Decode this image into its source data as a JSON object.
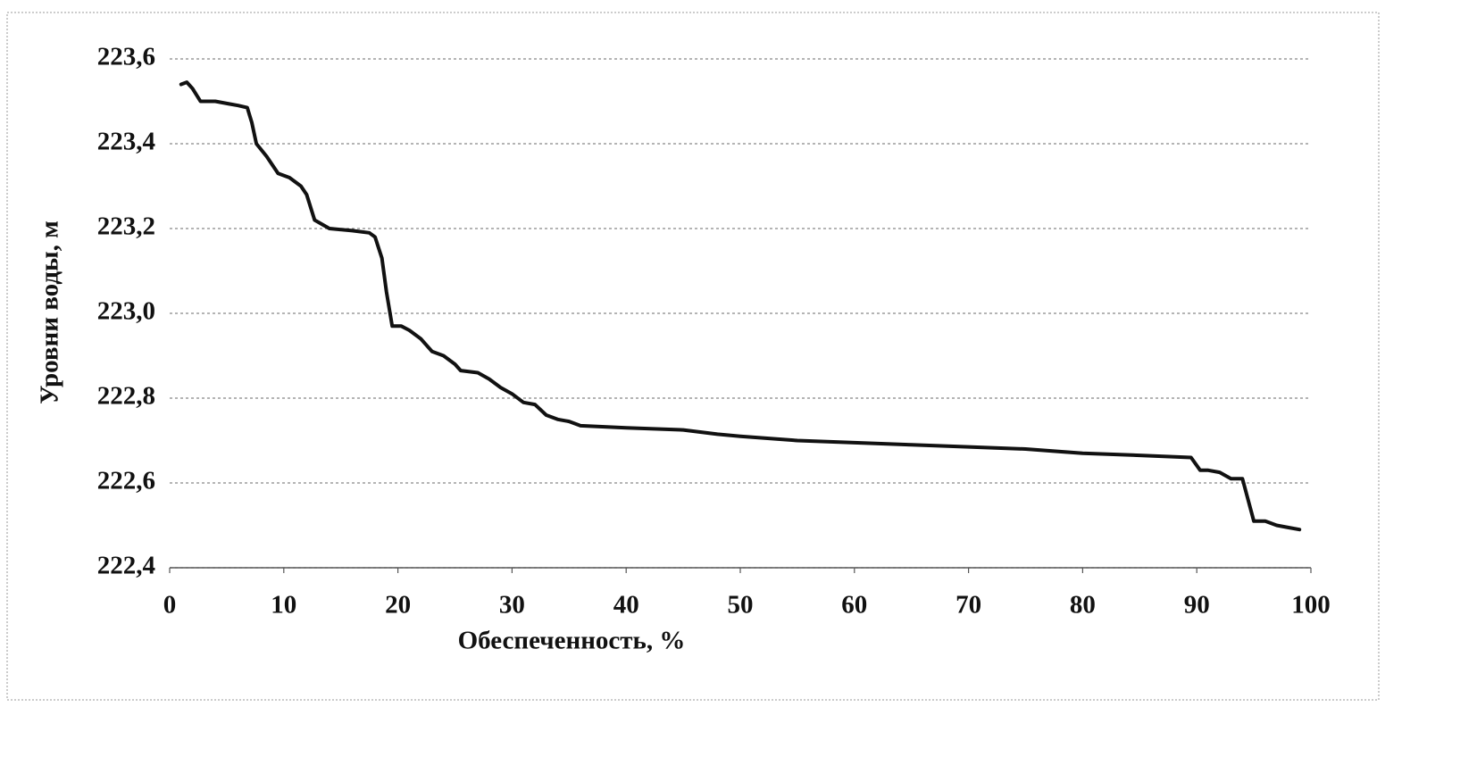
{
  "chart_data": {
    "type": "line",
    "x_label": "Обеспеченность, %",
    "y_label": "Уровни воды, м",
    "x": [
      1,
      1.5,
      2,
      2.7,
      4,
      5,
      6,
      6.8,
      7.2,
      7.6,
      8.5,
      9.5,
      10.5,
      11.5,
      12,
      12.7,
      14,
      16,
      17.5,
      18,
      18.6,
      19,
      19.5,
      20.3,
      21,
      22,
      23,
      24,
      25,
      25.5,
      27,
      28,
      29,
      30,
      31,
      32,
      33,
      34,
      35,
      36,
      40,
      45,
      48,
      50,
      55,
      60,
      65,
      70,
      75,
      80,
      85,
      89.5,
      90.3,
      91,
      92,
      93,
      94,
      94.5,
      95,
      96,
      97,
      98,
      99
    ],
    "values": [
      223.54,
      223.545,
      223.53,
      223.5,
      223.5,
      223.495,
      223.49,
      223.485,
      223.45,
      223.4,
      223.37,
      223.33,
      223.32,
      223.3,
      223.28,
      223.22,
      223.2,
      223.195,
      223.19,
      223.18,
      223.13,
      223.05,
      222.97,
      222.97,
      222.96,
      222.94,
      222.91,
      222.9,
      222.88,
      222.865,
      222.86,
      222.845,
      222.825,
      222.81,
      222.79,
      222.785,
      222.76,
      222.75,
      222.745,
      222.735,
      222.73,
      222.725,
      222.715,
      222.71,
      222.7,
      222.695,
      222.69,
      222.685,
      222.68,
      222.67,
      222.665,
      222.66,
      222.63,
      222.63,
      222.625,
      222.61,
      222.61,
      222.56,
      222.51,
      222.51,
      222.5,
      222.495,
      222.49
    ],
    "color": "#111111",
    "xlim": [
      0,
      100
    ],
    "xticks": [
      0,
      10,
      20,
      30,
      40,
      50,
      60,
      70,
      80,
      90,
      100
    ],
    "ylim": [
      222.4,
      223.6
    ],
    "yticks": [
      {
        "value": 222.4,
        "label": "222,4"
      },
      {
        "value": 222.6,
        "label": "222,6"
      },
      {
        "value": 222.8,
        "label": "222,8"
      },
      {
        "value": 223.0,
        "label": "223,0"
      },
      {
        "value": 223.2,
        "label": "223,2"
      },
      {
        "value": 223.4,
        "label": "223,4"
      },
      {
        "value": 223.6,
        "label": "223,6"
      }
    ],
    "grid": true
  }
}
